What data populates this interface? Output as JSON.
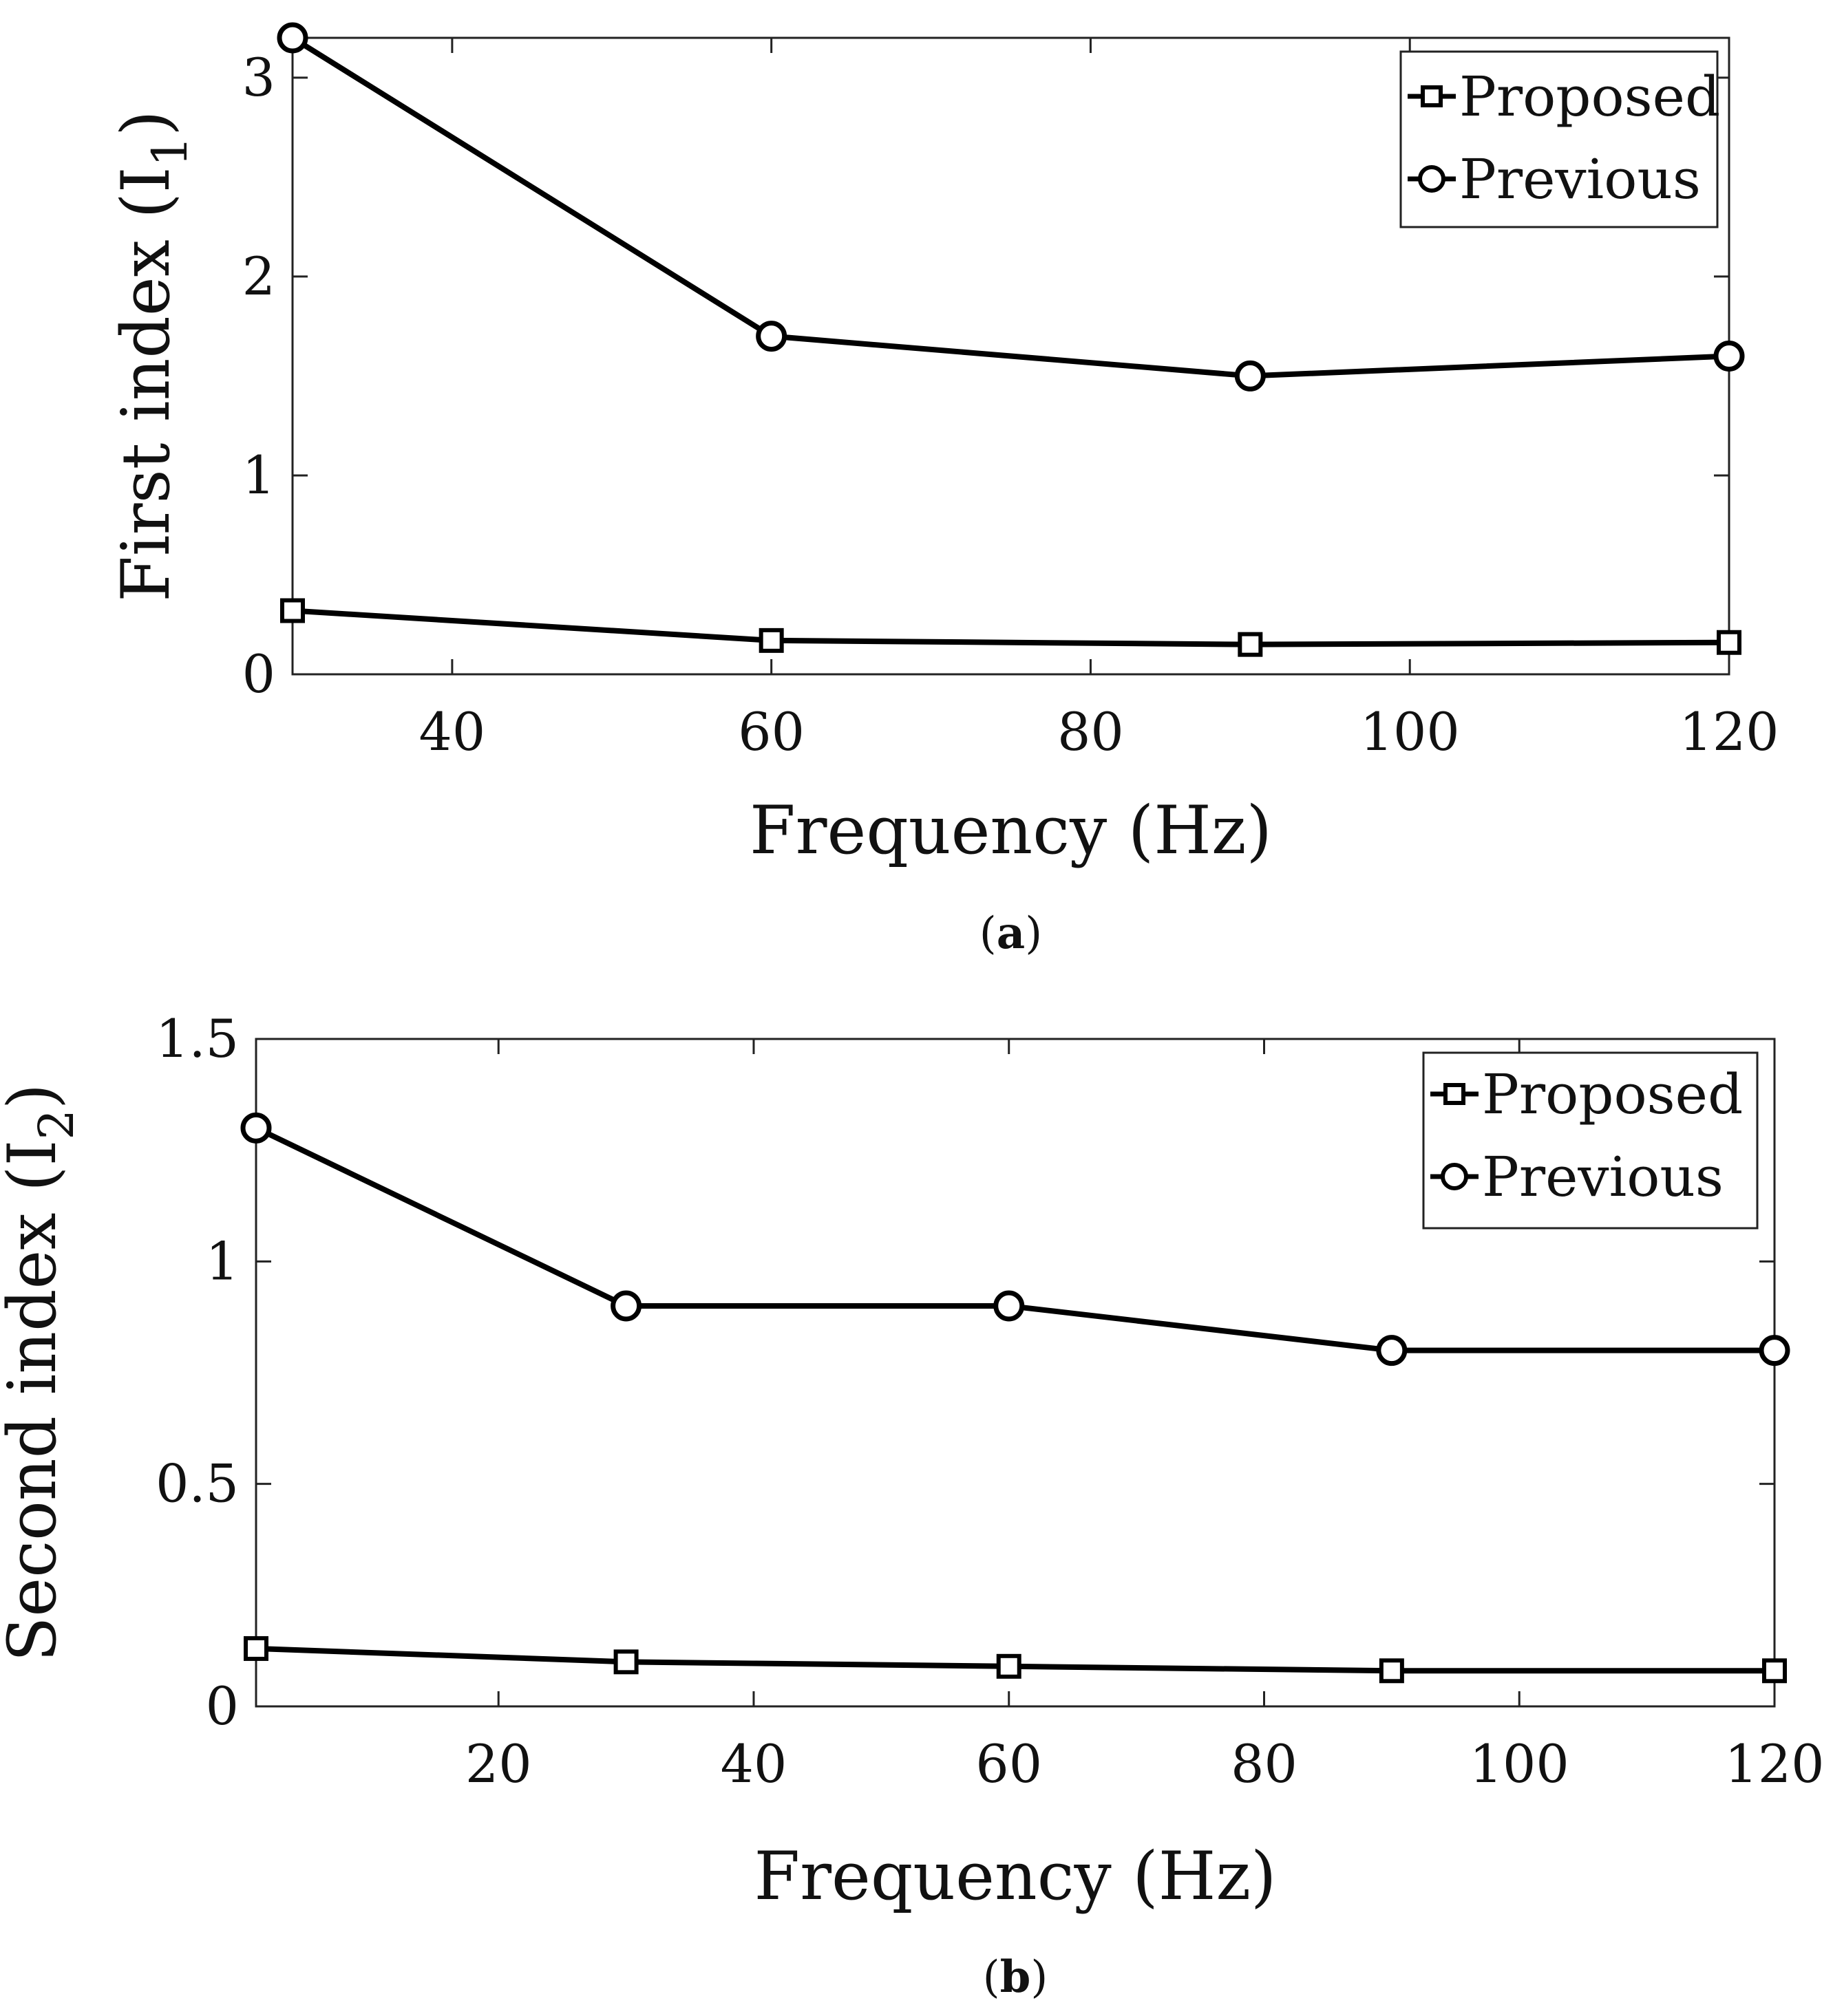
{
  "chart_data": [
    {
      "type": "line",
      "panel_label": "a",
      "caption": [
        "(",
        "a",
        ")"
      ],
      "xlabel": "Frequency (Hz)",
      "ylabel": "First index (I",
      "ylabel_sub": "1",
      "ylabel_close": ")",
      "xlim": [
        30,
        120
      ],
      "ylim": [
        0,
        3.2
      ],
      "xticks": [
        40,
        60,
        80,
        100,
        120
      ],
      "yticks": [
        0,
        1,
        2,
        3
      ],
      "grid": false,
      "legend_position": "top-right",
      "series": [
        {
          "name": "Proposed",
          "marker": "square",
          "x": [
            30,
            60,
            90,
            120
          ],
          "y": [
            0.32,
            0.17,
            0.15,
            0.16
          ]
        },
        {
          "name": "Previous",
          "marker": "circle",
          "x": [
            30,
            60,
            90,
            120
          ],
          "y": [
            3.2,
            1.7,
            1.5,
            1.6
          ]
        }
      ]
    },
    {
      "type": "line",
      "panel_label": "b",
      "caption": [
        "(",
        "b",
        ")"
      ],
      "xlabel": "Frequency (Hz)",
      "ylabel": "Second index (I",
      "ylabel_sub": "2",
      "ylabel_close": ")",
      "xlim": [
        1,
        120
      ],
      "ylim": [
        0,
        1.5
      ],
      "xticks": [
        20,
        40,
        60,
        80,
        100,
        120
      ],
      "yticks": [
        0,
        0.5,
        1,
        1.5
      ],
      "grid": false,
      "legend_position": "top-right",
      "series": [
        {
          "name": "Proposed",
          "marker": "square",
          "x": [
            1,
            30,
            60,
            90,
            120
          ],
          "y": [
            0.13,
            0.1,
            0.09,
            0.08,
            0.08
          ]
        },
        {
          "name": "Previous",
          "marker": "circle",
          "x": [
            1,
            30,
            60,
            90,
            120
          ],
          "y": [
            1.3,
            0.9,
            0.9,
            0.8,
            0.8
          ]
        }
      ]
    }
  ]
}
